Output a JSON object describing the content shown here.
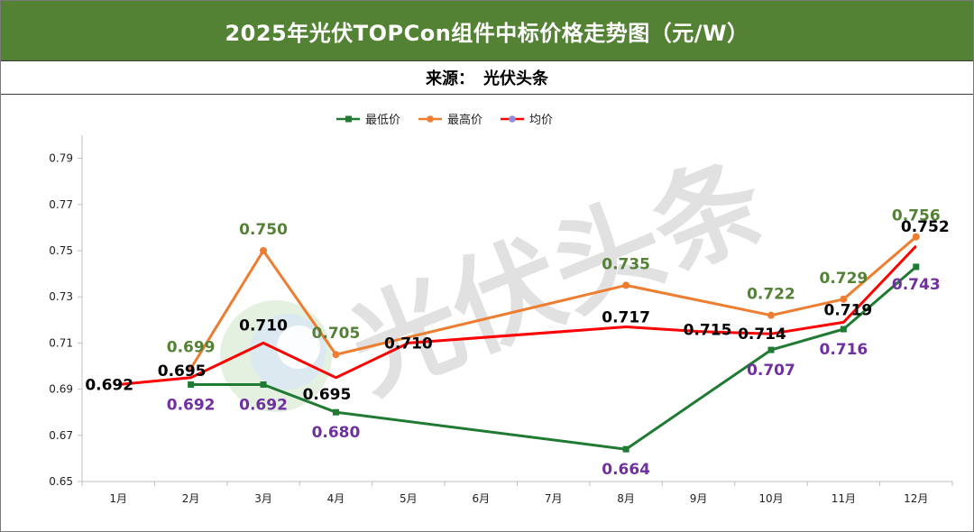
{
  "header": {
    "title": "2025年光伏TOPCon组件中标价格走势图（元/W）",
    "source_label": "来源：",
    "source_value": "光伏头条"
  },
  "watermark": "光伏头条",
  "colors": {
    "title_bg": "#548235",
    "low": "#1f7a32",
    "high": "#ed7d31",
    "avg": "#ff0000",
    "label_high": "#548235",
    "label_low": "#7030a0",
    "label_avg": "#000000"
  },
  "chart_data": {
    "type": "line",
    "title": "2025年光伏TOPCon组件中标价格走势图（元/W）",
    "categories": [
      "1月",
      "2月",
      "3月",
      "4月",
      "5月",
      "6月",
      "7月",
      "8月",
      "9月",
      "10月",
      "11月",
      "12月"
    ],
    "ylim": [
      0.65,
      0.8
    ],
    "yticks": [
      "0.65",
      "0.67",
      "0.69",
      "0.71",
      "0.73",
      "0.75",
      "0.77",
      "0.79"
    ],
    "grid": false,
    "legend": "top-center",
    "series": [
      {
        "key": "low",
        "name": "最低价",
        "marker": "square",
        "values": [
          null,
          0.692,
          0.692,
          0.68,
          null,
          null,
          null,
          0.664,
          null,
          0.707,
          0.716,
          0.743
        ],
        "labels": [
          null,
          "0.692",
          "0.692",
          "0.680",
          null,
          null,
          null,
          "0.664",
          null,
          "0.707",
          "0.716",
          "0.743"
        ]
      },
      {
        "key": "high",
        "name": "最高价",
        "marker": "circle",
        "values": [
          null,
          0.699,
          0.75,
          0.705,
          null,
          null,
          null,
          0.735,
          null,
          0.722,
          0.729,
          0.756
        ],
        "labels": [
          null,
          "0.699",
          "0.750",
          "0.705",
          null,
          null,
          null,
          "0.735",
          null,
          "0.722",
          "0.729",
          "0.756"
        ]
      },
      {
        "key": "avg",
        "name": "均价",
        "marker": "circle",
        "values": [
          0.692,
          0.695,
          0.71,
          0.695,
          0.71,
          null,
          null,
          0.717,
          0.715,
          0.714,
          0.719,
          0.752
        ],
        "labels": [
          "0.692",
          "0.695",
          "0.710",
          "0.695",
          "0.710",
          null,
          null,
          "0.717",
          "0.715",
          "0.714",
          "0.719",
          "0.752"
        ]
      }
    ]
  }
}
